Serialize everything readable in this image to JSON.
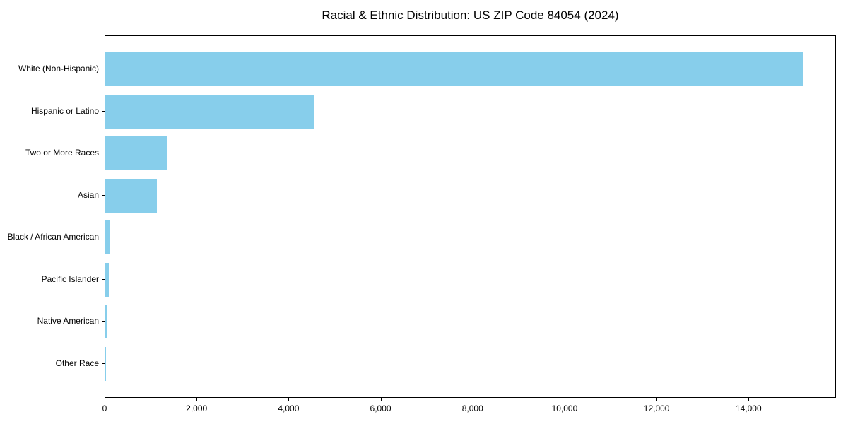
{
  "chart_data": {
    "type": "bar",
    "orientation": "horizontal",
    "title": "Racial & Ethnic Distribution: US ZIP Code 84054 (2024)",
    "xlabel": "",
    "ylabel": "",
    "categories": [
      "White (Non-Hispanic)",
      "Hispanic or Latino",
      "Two or More Races",
      "Asian",
      "Black / African American",
      "Pacific Islander",
      "Native American",
      "Other Race"
    ],
    "values": [
      15180,
      4530,
      1340,
      1120,
      115,
      80,
      50,
      15
    ],
    "xlim": [
      0,
      15900
    ],
    "x_ticks": [
      0,
      2000,
      4000,
      6000,
      8000,
      10000,
      12000,
      14000
    ],
    "x_tick_labels": [
      "0",
      "2,000",
      "4,000",
      "6,000",
      "8,000",
      "10,000",
      "12,000",
      "14,000"
    ],
    "grid": false,
    "legend": null,
    "colors": {
      "bar": "#87CEEB",
      "text": "#000000",
      "spine": "#000000",
      "background": "#ffffff"
    }
  }
}
